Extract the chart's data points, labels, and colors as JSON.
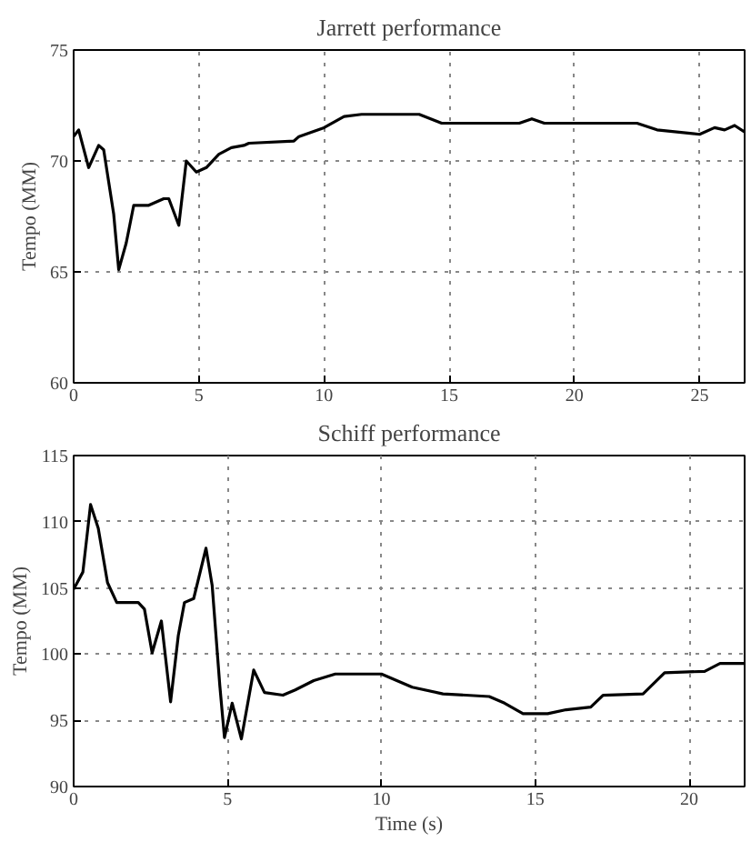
{
  "chart_data": [
    {
      "type": "line",
      "title": "Jarrett performance",
      "ylabel": "Tempo (MM)",
      "xlim": [
        0,
        26.8
      ],
      "ylim": [
        60,
        75
      ],
      "xticks": [
        0,
        5,
        10,
        15,
        20,
        25
      ],
      "yticks": [
        60,
        65,
        70,
        75
      ],
      "grid": true,
      "line_style": "solid",
      "marker": "none",
      "series": [
        {
          "color": "#000000",
          "x": [
            0,
            0.2,
            0.6,
            1.0,
            1.2,
            1.6,
            1.8,
            2.1,
            2.4,
            3.0,
            3.6,
            3.8,
            4.2,
            4.5,
            4.9,
            5.3,
            5.8,
            6.3,
            6.8,
            7.0,
            8.8,
            9.0,
            10,
            10.8,
            11.5,
            13.8,
            14.7,
            17.8,
            18.3,
            18.8,
            22.5,
            23.3,
            25.0,
            25.6,
            26.0,
            26.4,
            26.8
          ],
          "values": [
            71.1,
            71.4,
            69.7,
            70.7,
            70.5,
            67.6,
            65.1,
            66.3,
            68.0,
            68.0,
            68.3,
            68.3,
            67.1,
            70.0,
            69.5,
            69.7,
            70.3,
            70.6,
            70.7,
            70.8,
            70.9,
            71.1,
            71.5,
            72.0,
            72.1,
            72.1,
            71.7,
            71.7,
            71.9,
            71.7,
            71.7,
            71.4,
            71.2,
            71.5,
            71.4,
            71.6,
            71.3
          ]
        }
      ]
    },
    {
      "type": "line",
      "title": "Schiff performance",
      "xlabel": "Time (s)",
      "ylabel": "Tempo (MM)",
      "xlim": [
        0,
        21.8
      ],
      "ylim": [
        90,
        115
      ],
      "xticks": [
        0,
        5,
        10,
        15,
        20
      ],
      "yticks": [
        90,
        95,
        100,
        105,
        110,
        115
      ],
      "grid": true,
      "line_style": "solid",
      "marker": "none",
      "series": [
        {
          "color": "#000000",
          "x": [
            0,
            0.3,
            0.55,
            0.8,
            1.1,
            1.4,
            2.1,
            2.3,
            2.55,
            2.85,
            3.15,
            3.4,
            3.6,
            3.9,
            4.3,
            4.5,
            4.75,
            4.9,
            5.15,
            5.45,
            5.85,
            6.2,
            6.8,
            7.2,
            7.8,
            8.5,
            10,
            11,
            12,
            13.5,
            14,
            14.6,
            15.4,
            16,
            16.8,
            17.2,
            18.5,
            19.2,
            20.5,
            21,
            21.8
          ],
          "values": [
            104.9,
            106.2,
            111.3,
            109.5,
            105.4,
            103.9,
            103.9,
            103.4,
            100.1,
            102.5,
            96.4,
            101.4,
            103.9,
            104.2,
            108.0,
            105.2,
            97.6,
            93.7,
            96.3,
            93.6,
            98.8,
            97.1,
            96.9,
            97.3,
            98.0,
            98.5,
            98.5,
            97.5,
            97.0,
            96.8,
            96.3,
            95.5,
            95.5,
            95.8,
            96.0,
            96.9,
            97.0,
            98.6,
            98.7,
            99.3,
            99.3
          ]
        }
      ]
    }
  ]
}
